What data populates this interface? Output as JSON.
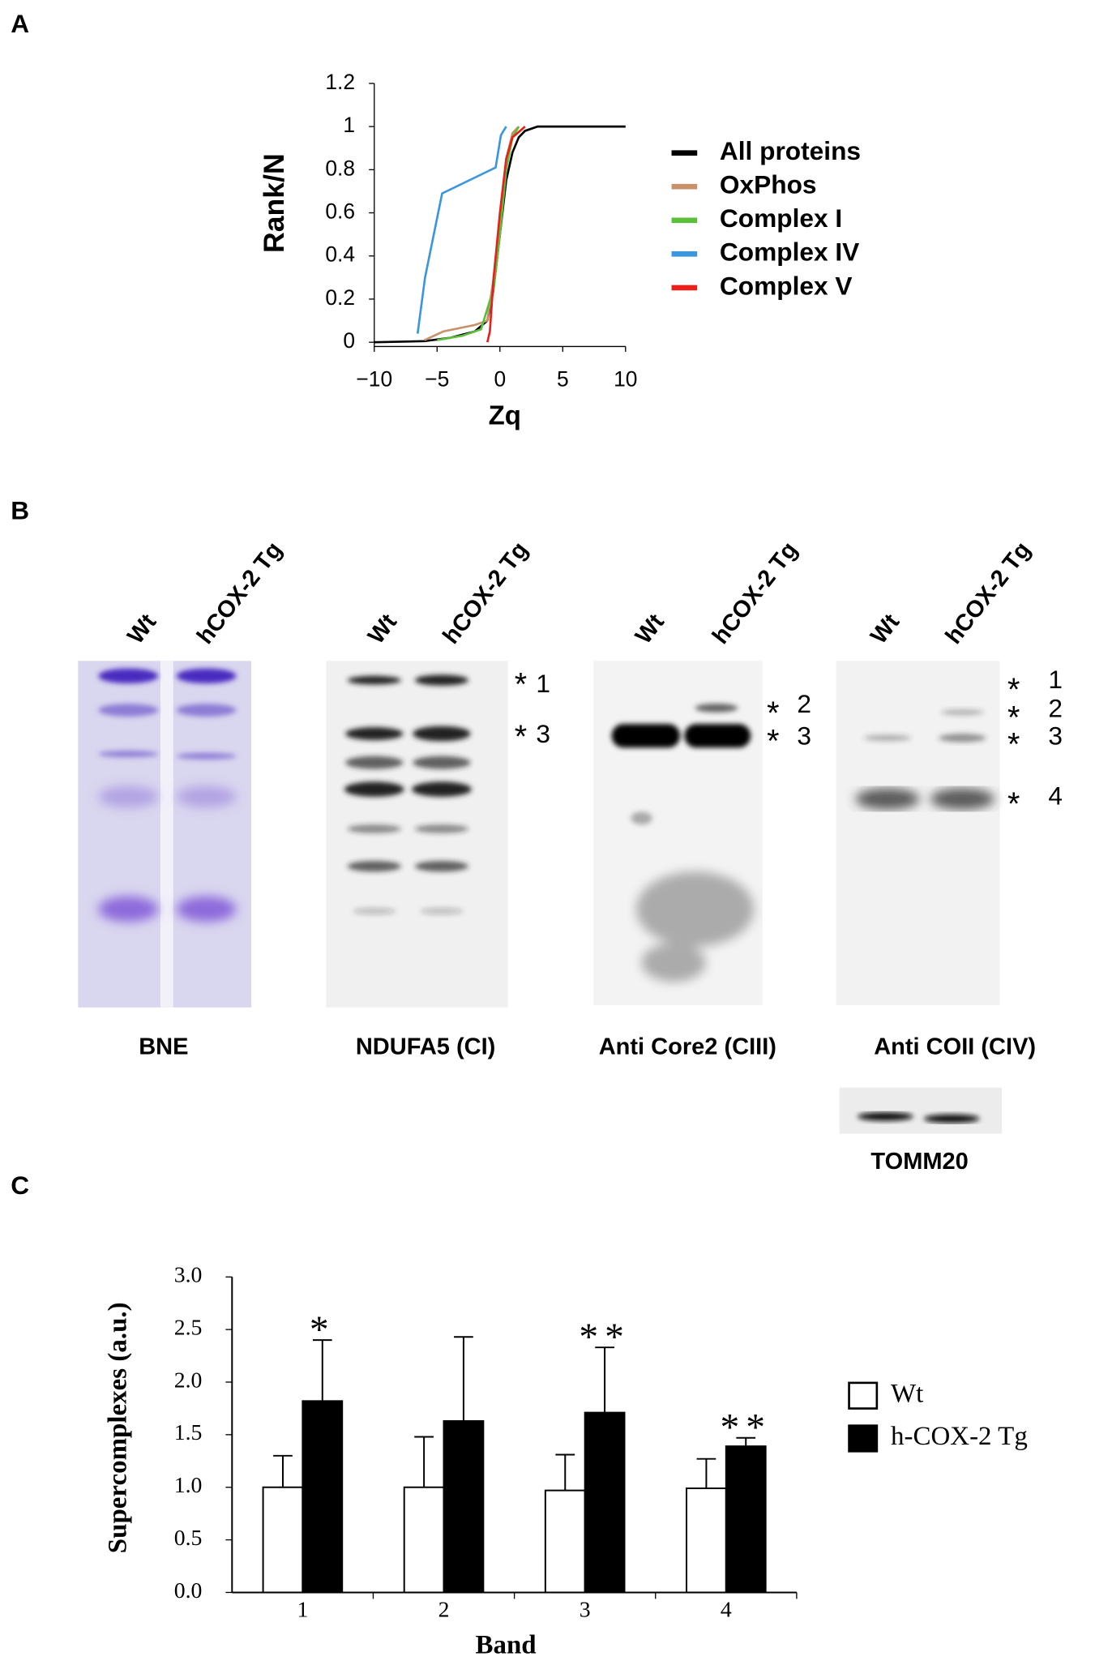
{
  "panel_labels": [
    "A",
    "B",
    "C"
  ],
  "chart_data": [
    {
      "type": "line",
      "xlabel": "Zq",
      "ylabel": "Rank/N",
      "xlim": [
        -10,
        10
      ],
      "xticks": [
        {
          "value": -10,
          "label": "−10"
        },
        {
          "value": -5,
          "label": "−5"
        },
        0,
        5,
        10
      ],
      "ylim": [
        0,
        1.2
      ],
      "yticks": [
        0,
        0.2,
        0.4,
        0.6,
        0.8,
        1,
        1.2
      ],
      "series": [
        {
          "name": "All proteins",
          "color": "#000000",
          "x": [
            -10,
            -6,
            -4,
            -2,
            -1,
            -0.5,
            0,
            0.5,
            1,
            1.5,
            2,
            3,
            10
          ],
          "values": [
            0,
            0.005,
            0.02,
            0.05,
            0.1,
            0.25,
            0.5,
            0.75,
            0.88,
            0.95,
            0.98,
            1,
            1
          ]
        },
        {
          "name": "OxPhos",
          "color": "#c8916a",
          "x": [
            -6,
            -4.5,
            -2,
            -1,
            -0.5,
            0,
            0.5,
            1,
            1.5
          ],
          "values": [
            0.01,
            0.05,
            0.08,
            0.1,
            0.3,
            0.55,
            0.85,
            0.97,
            1
          ]
        },
        {
          "name": "Complex I",
          "color": "#5cbf3a",
          "x": [
            -5,
            -3,
            -1.5,
            -0.5,
            0,
            0.5,
            1,
            1.5
          ],
          "values": [
            0.01,
            0.03,
            0.06,
            0.25,
            0.5,
            0.8,
            0.95,
            1
          ]
        },
        {
          "name": "Complex IV",
          "color": "#3a96dd",
          "x": [
            -6.55,
            -5.96,
            -4.6,
            -0.34,
            0.08,
            0.5
          ],
          "values": [
            0.04,
            0.3,
            0.69,
            0.81,
            0.96,
            1
          ]
        },
        {
          "name": "Complex V",
          "color": "#e8201c",
          "x": [
            -1,
            -0.8,
            -0.5,
            0,
            0.5,
            1,
            2
          ],
          "values": [
            0,
            0.05,
            0.3,
            0.6,
            0.85,
            0.95,
            1
          ]
        }
      ]
    },
    {
      "type": "bar",
      "xlabel": "Band",
      "ylabel": "Supercomplexes (a.u.)",
      "categories": [
        "1",
        "2",
        "3",
        "4"
      ],
      "ylim": [
        0,
        3
      ],
      "yticks": [
        {
          "value": 0,
          "label": "0.0"
        },
        {
          "value": 0.5,
          "label": "0.5"
        },
        {
          "value": 1,
          "label": "1.0"
        },
        {
          "value": 1.5,
          "label": "1.5"
        },
        {
          "value": 2,
          "label": "2.0"
        },
        {
          "value": 2.5,
          "label": "2.5"
        },
        {
          "value": 3,
          "label": "3.0"
        }
      ],
      "series": [
        {
          "name": "Wt",
          "color": "#ffffff",
          "values": [
            1.0,
            1.0,
            0.97,
            0.99
          ],
          "errors": [
            0.3,
            0.48,
            0.34,
            0.28
          ]
        },
        {
          "name": "h-COX-2 Tg",
          "color": "#000000",
          "values": [
            1.82,
            1.63,
            1.71,
            1.39
          ],
          "errors": [
            0.58,
            0.8,
            0.62,
            0.08
          ],
          "annotations": [
            "*",
            null,
            "**",
            "**"
          ]
        }
      ]
    }
  ],
  "blots": [
    {
      "name": "BNE",
      "lanes": [
        "Wt",
        "hCOX-2 Tg"
      ]
    },
    {
      "name": "NDUFA5 (CI)",
      "lanes": [
        "Wt",
        "hCOX-2 Tg"
      ],
      "bands": [
        {
          "mark": "*",
          "label": "1"
        },
        {
          "mark": "*",
          "label": "3"
        }
      ]
    },
    {
      "name": "Anti Core2 (CIII)",
      "lanes": [
        "Wt",
        "hCOX-2 Tg"
      ],
      "bands": [
        {
          "mark": "*",
          "label": "2"
        },
        {
          "mark": "*",
          "label": "3"
        }
      ]
    },
    {
      "name": "Anti COII (CIV)",
      "lanes": [
        "Wt",
        "hCOX-2 Tg"
      ],
      "bands": [
        {
          "mark": "*",
          "label": "1"
        },
        {
          "mark": "*",
          "label": "2"
        },
        {
          "mark": "*",
          "label": "3"
        },
        {
          "mark": "*",
          "label": "4"
        }
      ]
    },
    {
      "name": "TOMM20"
    }
  ]
}
